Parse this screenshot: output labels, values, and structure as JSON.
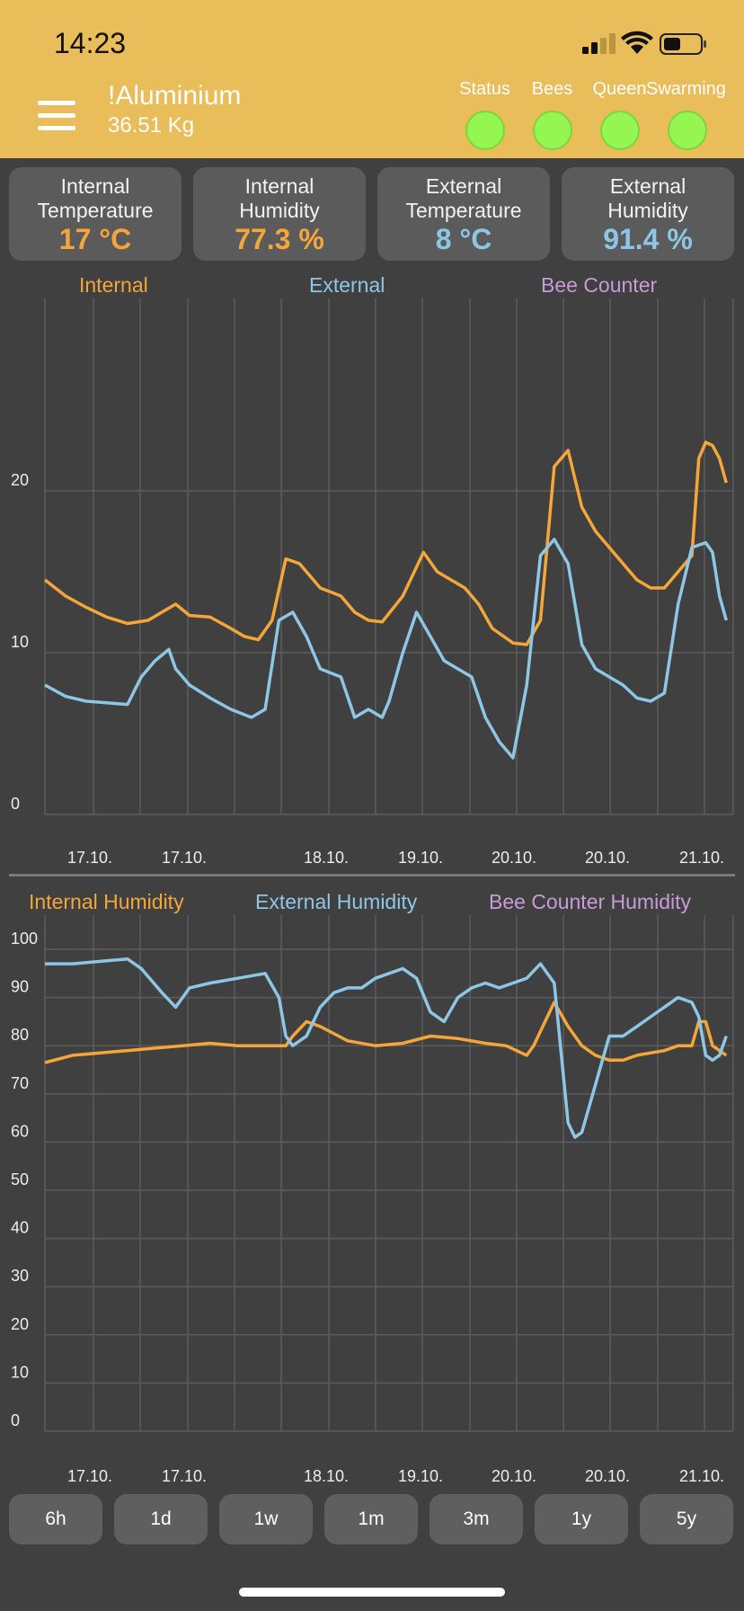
{
  "status_bar": {
    "time": "14:23"
  },
  "header": {
    "hive_name": "!Aluminium",
    "weight": "36.51 Kg"
  },
  "indicators": [
    {
      "label": "Status",
      "color": "#95F551"
    },
    {
      "label": "Bees",
      "color": "#95F551"
    },
    {
      "label": "Queen",
      "color": "#95F551"
    },
    {
      "label": "Swarming",
      "color": "#95F551"
    }
  ],
  "tiles": [
    {
      "label1": "Internal",
      "label2": "Temperature",
      "value": "17 °C",
      "color": "#F4A63A"
    },
    {
      "label1": "Internal",
      "label2": "Humidity",
      "value": "77.3 %",
      "color": "#F4A63A"
    },
    {
      "label1": "External",
      "label2": "Temperature",
      "value": "8 °C",
      "color": "#8EC6E6"
    },
    {
      "label1": "External",
      "label2": "Humidity",
      "value": "91.4 %",
      "color": "#8EC6E6"
    }
  ],
  "colors": {
    "internal": "#F4A63A",
    "external": "#8EC6E6",
    "bee_counter": "#C79BD6",
    "grid": "#5C5C5C",
    "header": "#E8BD5A"
  },
  "chart_data": [
    {
      "type": "line",
      "legend": [
        "Internal",
        "External",
        "Bee Counter"
      ],
      "legend_placement": "top",
      "y_ticks": [
        "0",
        "10",
        "20"
      ],
      "x_tick_labels": [
        "17.10.",
        "17.10.",
        "18.10.",
        "19.10.",
        "20.10.",
        "20.10.",
        "21.10."
      ],
      "ylim": [
        0,
        25
      ],
      "series": [
        {
          "name": "Internal",
          "x": [
            0,
            3,
            6,
            9,
            12,
            15,
            17,
            19,
            21,
            24,
            27,
            29,
            31,
            33,
            35,
            37,
            40,
            43,
            45,
            47,
            49,
            52,
            55,
            57,
            59,
            61,
            63,
            65,
            68,
            70,
            72,
            74,
            76,
            78,
            80,
            82,
            84,
            86,
            88,
            90,
            92,
            94,
            95,
            96,
            97,
            98,
            99
          ],
          "values": [
            14.5,
            13.5,
            12.8,
            12.2,
            11.8,
            12.0,
            12.5,
            13.0,
            12.3,
            12.2,
            11.5,
            11.0,
            10.8,
            12.0,
            15.8,
            15.5,
            14.0,
            13.5,
            12.5,
            12.0,
            11.9,
            13.5,
            16.2,
            15.0,
            14.5,
            14.0,
            13.0,
            11.5,
            10.6,
            10.5,
            12.0,
            21.5,
            22.5,
            19.0,
            17.5,
            16.5,
            15.5,
            14.5,
            14.0,
            14.0,
            15.0,
            16.0,
            22.0,
            23.0,
            22.8,
            22.0,
            20.5
          ]
        },
        {
          "name": "External",
          "x": [
            0,
            3,
            6,
            9,
            12,
            14,
            16,
            18,
            19,
            21,
            24,
            27,
            30,
            32,
            34,
            36,
            38,
            40,
            43,
            45,
            47,
            49,
            50,
            52,
            54,
            56,
            58,
            60,
            62,
            64,
            66,
            68,
            70,
            72,
            74,
            76,
            78,
            80,
            82,
            84,
            86,
            88,
            90,
            92,
            94,
            96,
            97,
            98,
            99
          ],
          "values": [
            8.0,
            7.3,
            7.0,
            6.9,
            6.8,
            8.5,
            9.5,
            10.2,
            9.0,
            8.0,
            7.2,
            6.5,
            6.0,
            6.5,
            12.0,
            12.5,
            11.0,
            9.0,
            8.5,
            6.0,
            6.5,
            6.0,
            7.0,
            10.0,
            12.5,
            11.0,
            9.5,
            9.0,
            8.5,
            6.0,
            4.5,
            3.5,
            8.0,
            16.0,
            17.0,
            15.5,
            10.5,
            9.0,
            8.5,
            8.0,
            7.2,
            7.0,
            7.5,
            13.0,
            16.5,
            16.8,
            16.2,
            13.5,
            12.0
          ]
        }
      ]
    },
    {
      "type": "line",
      "legend": [
        "Internal Humidity",
        "External Humidity",
        "Bee Counter Humidity"
      ],
      "legend_placement": "top",
      "y_ticks": [
        "0",
        "10",
        "20",
        "30",
        "40",
        "50",
        "60",
        "70",
        "80",
        "90",
        "100"
      ],
      "x_tick_labels": [
        "17.10.",
        "17.10.",
        "18.10.",
        "19.10.",
        "20.10.",
        "20.10.",
        "21.10."
      ],
      "ylim": [
        0,
        100
      ],
      "series": [
        {
          "name": "Internal Humidity",
          "x": [
            0,
            4,
            8,
            12,
            16,
            20,
            24,
            28,
            32,
            35,
            36,
            38,
            40,
            44,
            48,
            52,
            56,
            60,
            64,
            67,
            70,
            71,
            72,
            74,
            76,
            78,
            80,
            82,
            84,
            86,
            88,
            90,
            92,
            94,
            95,
            96,
            97,
            98,
            99
          ],
          "values": [
            76.5,
            78,
            78.5,
            79,
            79.5,
            80,
            80.5,
            80,
            80,
            80,
            82,
            85,
            84,
            81,
            80,
            80.5,
            82,
            81.5,
            80.5,
            80,
            78,
            80,
            83,
            89,
            84,
            80,
            78,
            77,
            77,
            78,
            78.5,
            79,
            80,
            80,
            85,
            85,
            80,
            79,
            78
          ]
        },
        {
          "name": "External Humidity",
          "x": [
            0,
            4,
            8,
            12,
            14,
            17,
            19,
            21,
            24,
            28,
            32,
            34,
            35,
            36,
            37,
            38,
            40,
            42,
            44,
            46,
            48,
            52,
            54,
            56,
            58,
            60,
            62,
            64,
            66,
            68,
            70,
            72,
            74,
            76,
            77,
            78,
            80,
            82,
            84,
            86,
            88,
            90,
            92,
            94,
            95,
            96,
            97,
            98,
            99
          ],
          "values": [
            97,
            97,
            97.5,
            98,
            96,
            91,
            88,
            92,
            93,
            94,
            95,
            90,
            82,
            80,
            81,
            82,
            88,
            91,
            92,
            92,
            94,
            96,
            94,
            87,
            85,
            90,
            92,
            93,
            92,
            93,
            94,
            97,
            93,
            64,
            61,
            62,
            72,
            82,
            82,
            84,
            86,
            88,
            90,
            89,
            86,
            78,
            77,
            78,
            82
          ]
        }
      ]
    }
  ],
  "time_ranges": [
    "6h",
    "1d",
    "1w",
    "1m",
    "3m",
    "1y",
    "5y"
  ]
}
